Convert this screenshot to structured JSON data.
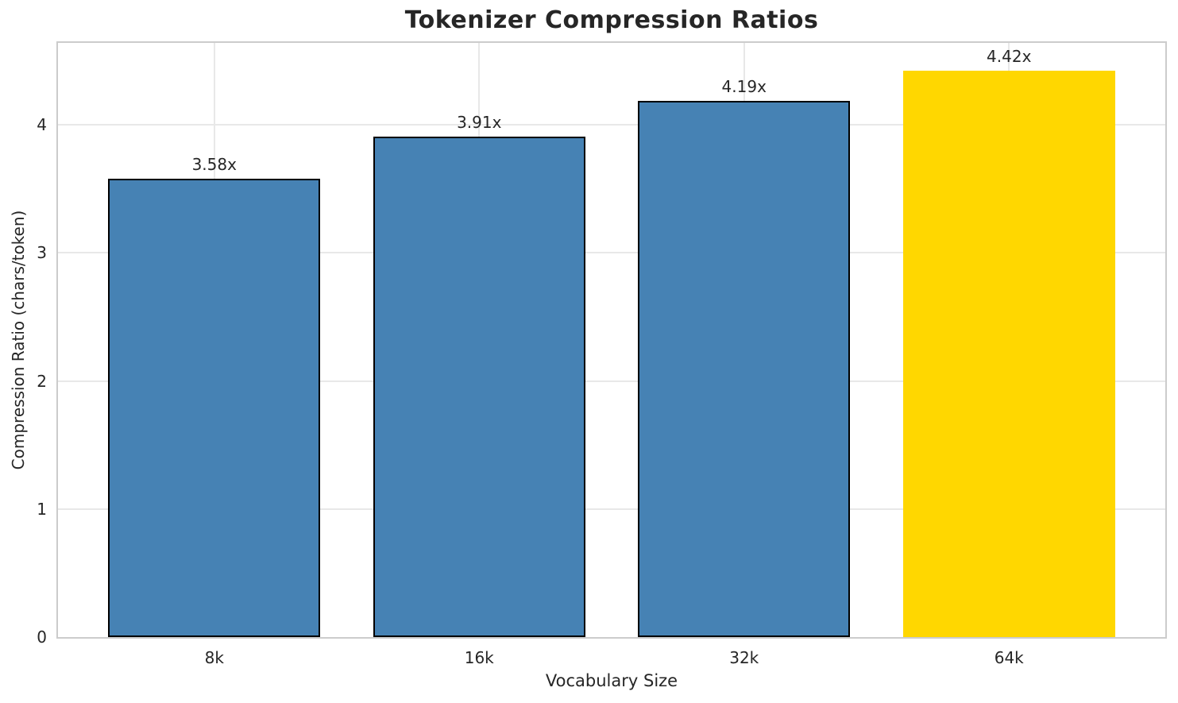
{
  "chart_data": {
    "type": "bar",
    "title": "Tokenizer Compression Ratios",
    "xlabel": "Vocabulary Size",
    "ylabel": "Compression Ratio (chars/token)",
    "categories": [
      "8k",
      "16k",
      "32k",
      "64k"
    ],
    "values": [
      3.58,
      3.91,
      4.19,
      4.42
    ],
    "value_labels": [
      "3.58x",
      "3.91x",
      "4.19x",
      "4.42x"
    ],
    "yticks": [
      0,
      1,
      2,
      3,
      4
    ],
    "ylim": [
      0,
      4.64
    ],
    "xlim": [
      -0.59,
      3.59
    ],
    "bar_width": 0.8,
    "grid": true,
    "legend": "none",
    "highlight_index": 3,
    "colors": {
      "bar": "#4682B4",
      "highlight": "#FFD700",
      "bar_edge": "#000000",
      "grid": "#e8e8e8",
      "spine": "#cccccc",
      "text": "#262626"
    }
  }
}
